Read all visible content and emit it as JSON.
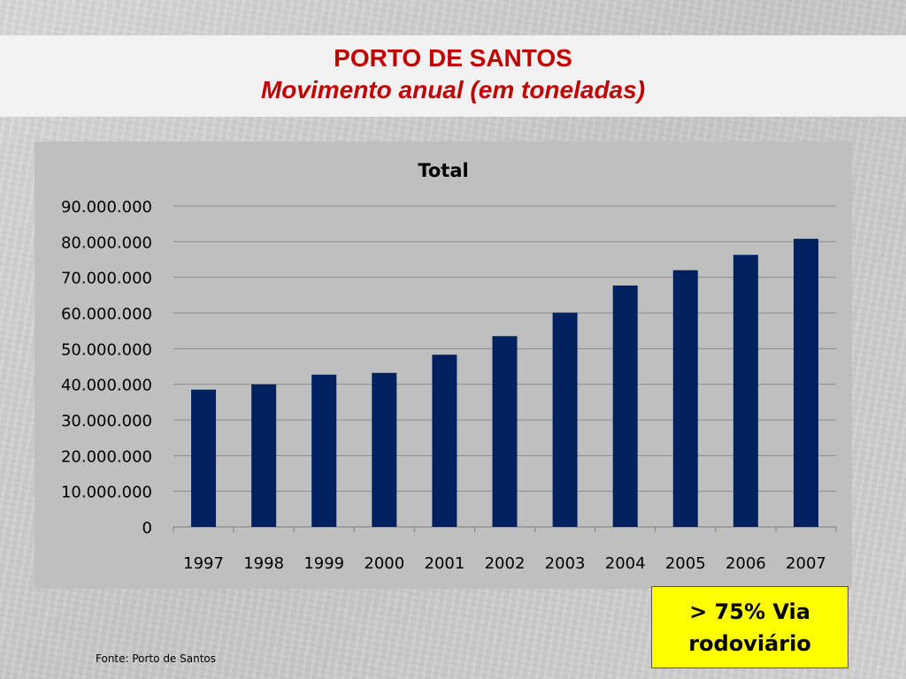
{
  "slide": {
    "title": "PORTO DE SANTOS",
    "subtitle": "Movimento anual (em toneladas)",
    "note": "> 75% Via rodoviário",
    "source": "Fonte: Porto de Santos"
  },
  "colors": {
    "title": "#c00000",
    "bar": "#002060",
    "chart_bg": "#bfbfbf",
    "note_bg": "#ffff00"
  },
  "chart_data": {
    "type": "bar",
    "title": "Total",
    "xlabel": "",
    "ylabel": "",
    "categories": [
      "1997",
      "1998",
      "1999",
      "2000",
      "2001",
      "2002",
      "2003",
      "2004",
      "2005",
      "2006",
      "2007"
    ],
    "values": [
      38500000,
      40000000,
      42700000,
      43200000,
      48300000,
      53500000,
      60100000,
      67700000,
      72000000,
      76300000,
      80800000
    ],
    "ylim": [
      0,
      90000000
    ],
    "yticks": [
      0,
      10000000,
      20000000,
      30000000,
      40000000,
      50000000,
      60000000,
      70000000,
      80000000,
      90000000
    ],
    "ytick_labels": [
      "0",
      "10.000.000",
      "20.000.000",
      "30.000.000",
      "40.000.000",
      "50.000.000",
      "60.000.000",
      "70.000.000",
      "80.000.000",
      "90.000.000"
    ],
    "grid": true,
    "legend": "none"
  }
}
